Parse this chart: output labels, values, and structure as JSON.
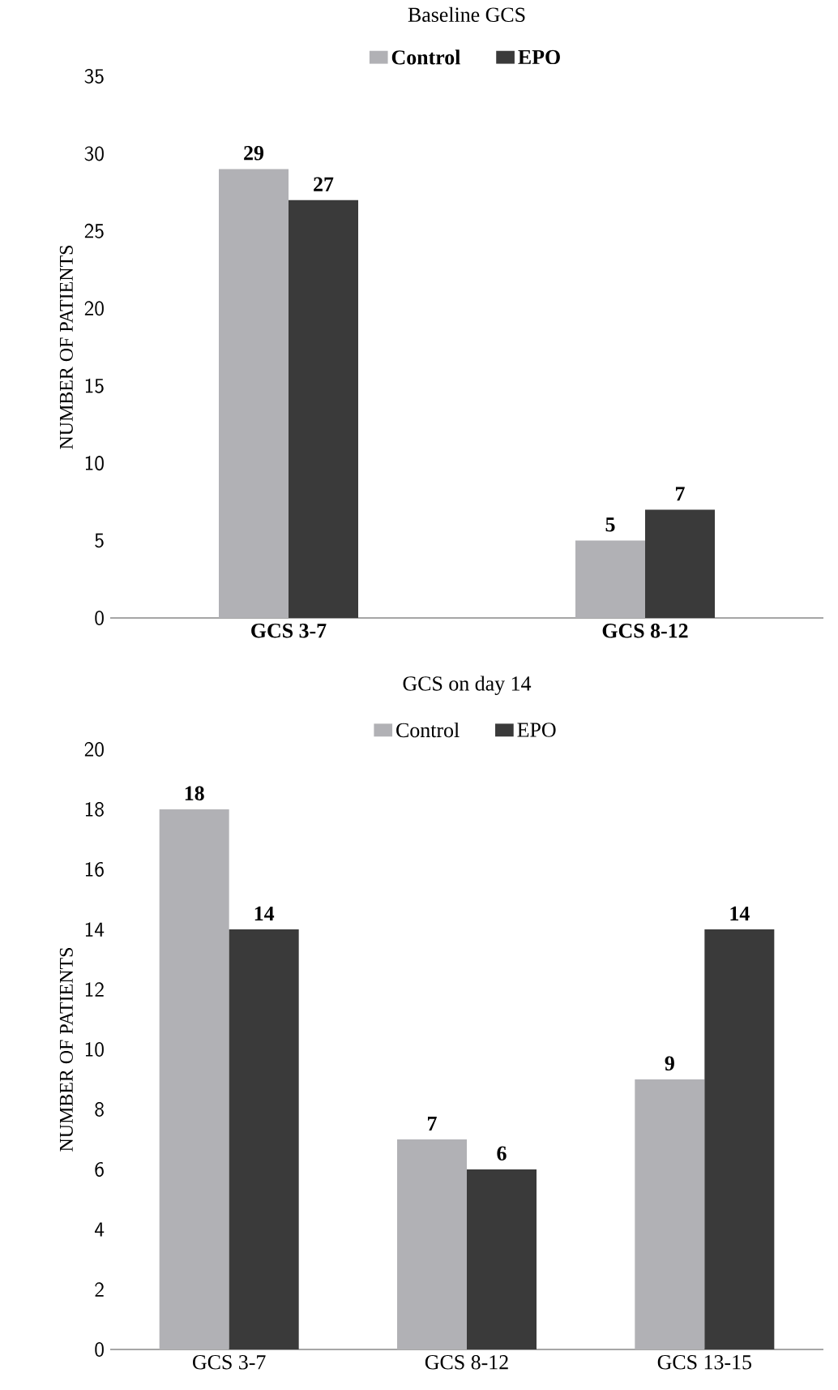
{
  "chart_data": [
    {
      "type": "bar",
      "title": "Baseline GCS",
      "ylabel": "NUMBER OF PATIENTS",
      "categories": [
        "GCS 3-7",
        "GCS 8-12"
      ],
      "series": [
        {
          "name": "Control",
          "color": "#b1b1b5",
          "values": [
            29,
            5
          ]
        },
        {
          "name": "EPO",
          "color": "#3a3a3a",
          "values": [
            27,
            7
          ]
        }
      ],
      "ylim": [
        0,
        35
      ],
      "yticks": [
        0,
        5,
        10,
        15,
        20,
        25,
        30,
        35
      ],
      "data_labels": true,
      "legend": "top",
      "grid": false
    },
    {
      "type": "bar",
      "title": "GCS on day 14",
      "ylabel": "NUMBER OF PATIENTS",
      "categories": [
        "GCS 3-7",
        "GCS 8-12",
        "GCS 13-15"
      ],
      "series": [
        {
          "name": "Control",
          "color": "#b1b1b5",
          "values": [
            18,
            7,
            9
          ]
        },
        {
          "name": "EPO",
          "color": "#3a3a3a",
          "values": [
            14,
            6,
            14
          ]
        }
      ],
      "ylim": [
        0,
        20
      ],
      "yticks": [
        0,
        2,
        4,
        6,
        8,
        10,
        12,
        14,
        16,
        18,
        20
      ],
      "data_labels": true,
      "legend": "top",
      "grid": false
    }
  ]
}
